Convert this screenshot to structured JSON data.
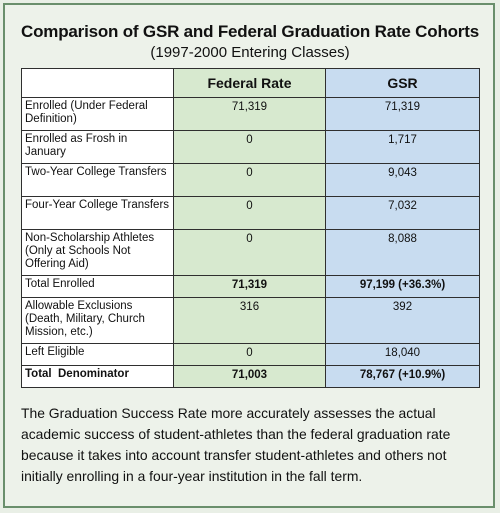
{
  "title": "Comparison of GSR and Federal Graduation Rate Cohorts",
  "subtitle": "(1997-2000 Entering Classes)",
  "table": {
    "headers": [
      "",
      "Federal Rate",
      "GSR"
    ],
    "rows": [
      {
        "label": "Enrolled (Under Federal Definition)",
        "federal": "71,319",
        "gsr": "71,319"
      },
      {
        "label": "Enrolled as Frosh in January",
        "federal": "0",
        "gsr": "1,717"
      },
      {
        "label": "Two-Year College Transfers",
        "federal": "0",
        "gsr": "9,043"
      },
      {
        "label": "Four-Year College Transfers",
        "federal": "0",
        "gsr": "7,032"
      },
      {
        "label": "Non-Scholarship Athletes (Only at Schools Not Offering Aid)",
        "federal": "0",
        "gsr": "8,088"
      },
      {
        "label": "Total Enrolled",
        "federal": "71,319",
        "gsr": "97,199 (+36.3%)"
      },
      {
        "label": "Allowable Exclusions (Death, Military, Church Mission, etc.)",
        "federal": "316",
        "gsr": "392"
      },
      {
        "label": "Left Eligible",
        "federal": "0",
        "gsr": "18,040"
      },
      {
        "label": "Total  Denominator",
        "federal": "71,003",
        "gsr": "78,767 (+10.9%)"
      }
    ]
  },
  "caption": "The Graduation Success Rate more accurately assesses the actual academic success of student-athletes than the federal graduation rate because it takes into account transfer student-athletes and others not initially enrolling in a four-year institution in the fall term.",
  "colors": {
    "federal": "#d7e9cf",
    "gsr": "#c8dcf0",
    "border": "#6a8f6c"
  }
}
